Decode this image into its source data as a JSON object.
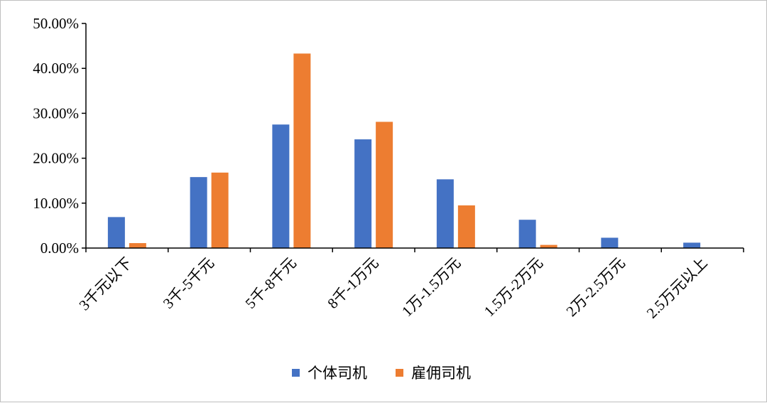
{
  "chart_data": {
    "type": "bar",
    "title": "",
    "xlabel": "",
    "ylabel": "",
    "categories": [
      "3千元以下",
      "3千-5千元",
      "5千-8千元",
      "8千-1万元",
      "1万-1.5万元",
      "1.5万-2万元",
      "2万-2.5万元",
      "2.5万元以上"
    ],
    "series": [
      {
        "name": "个体司机",
        "values": [
          6.9,
          15.8,
          27.5,
          24.2,
          15.3,
          6.3,
          2.3,
          1.2
        ]
      },
      {
        "name": "雇佣司机",
        "values": [
          1.1,
          16.8,
          43.3,
          28.1,
          9.5,
          0.7,
          0,
          0
        ]
      }
    ],
    "ylim": [
      0,
      50
    ],
    "yticks": [
      "0.00%",
      "10.00%",
      "20.00%",
      "30.00%",
      "40.00%",
      "50.00%"
    ],
    "grid": false,
    "legend_position": "bottom",
    "colors": [
      "#4472c4",
      "#ed7d31"
    ]
  }
}
